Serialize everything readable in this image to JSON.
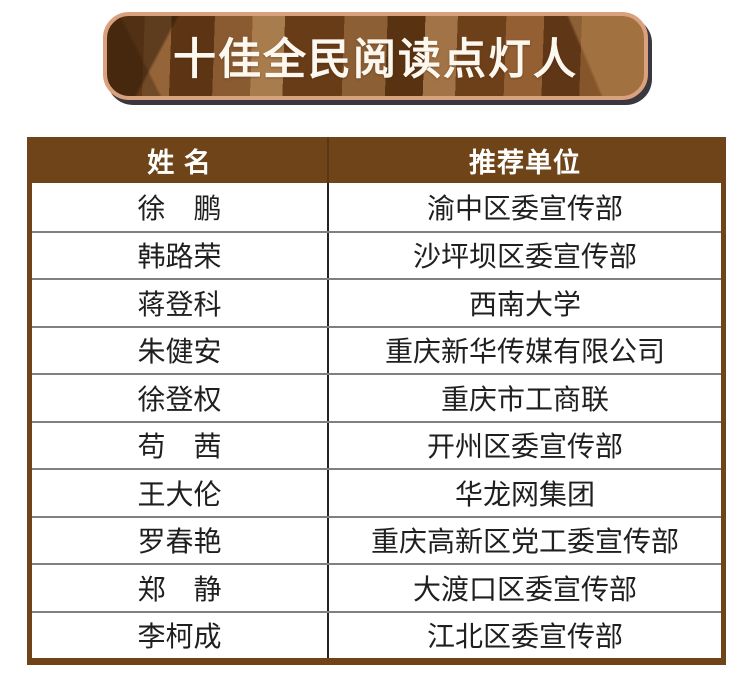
{
  "banner": {
    "title": "十佳全民阅读点灯人"
  },
  "table": {
    "columns": [
      {
        "label": "姓 名"
      },
      {
        "label": "推荐单位"
      }
    ],
    "rows": [
      {
        "name": "徐　鹏",
        "unit": "渝中区委宣传部"
      },
      {
        "name": "韩路荣",
        "unit": "沙坪坝区委宣传部"
      },
      {
        "name": "蒋登科",
        "unit": "西南大学"
      },
      {
        "name": "朱健安",
        "unit": "重庆新华传媒有限公司"
      },
      {
        "name": "徐登权",
        "unit": "重庆市工商联"
      },
      {
        "name": "苟　茜",
        "unit": "开州区委宣传部"
      },
      {
        "name": "王大伦",
        "unit": "华龙网集团"
      },
      {
        "name": "罗春艳",
        "unit": "重庆高新区党工委宣传部"
      },
      {
        "name": "郑　静",
        "unit": "大渡口区委宣传部"
      },
      {
        "name": "李柯成",
        "unit": "江北区委宣传部"
      }
    ]
  },
  "colors": {
    "table_border_brown": "#6e4418",
    "header_background": "#6e4418",
    "header_text": "#ffffff",
    "banner_border_tan": "#d9a17e",
    "banner_shadow": "#3a383e",
    "banner_title_text": "#fcf8f0",
    "row_divider_gray": "#808080",
    "column_divider_dark": "#222222",
    "body_text": "#1f1f1f",
    "page_background": "#ffffff"
  }
}
